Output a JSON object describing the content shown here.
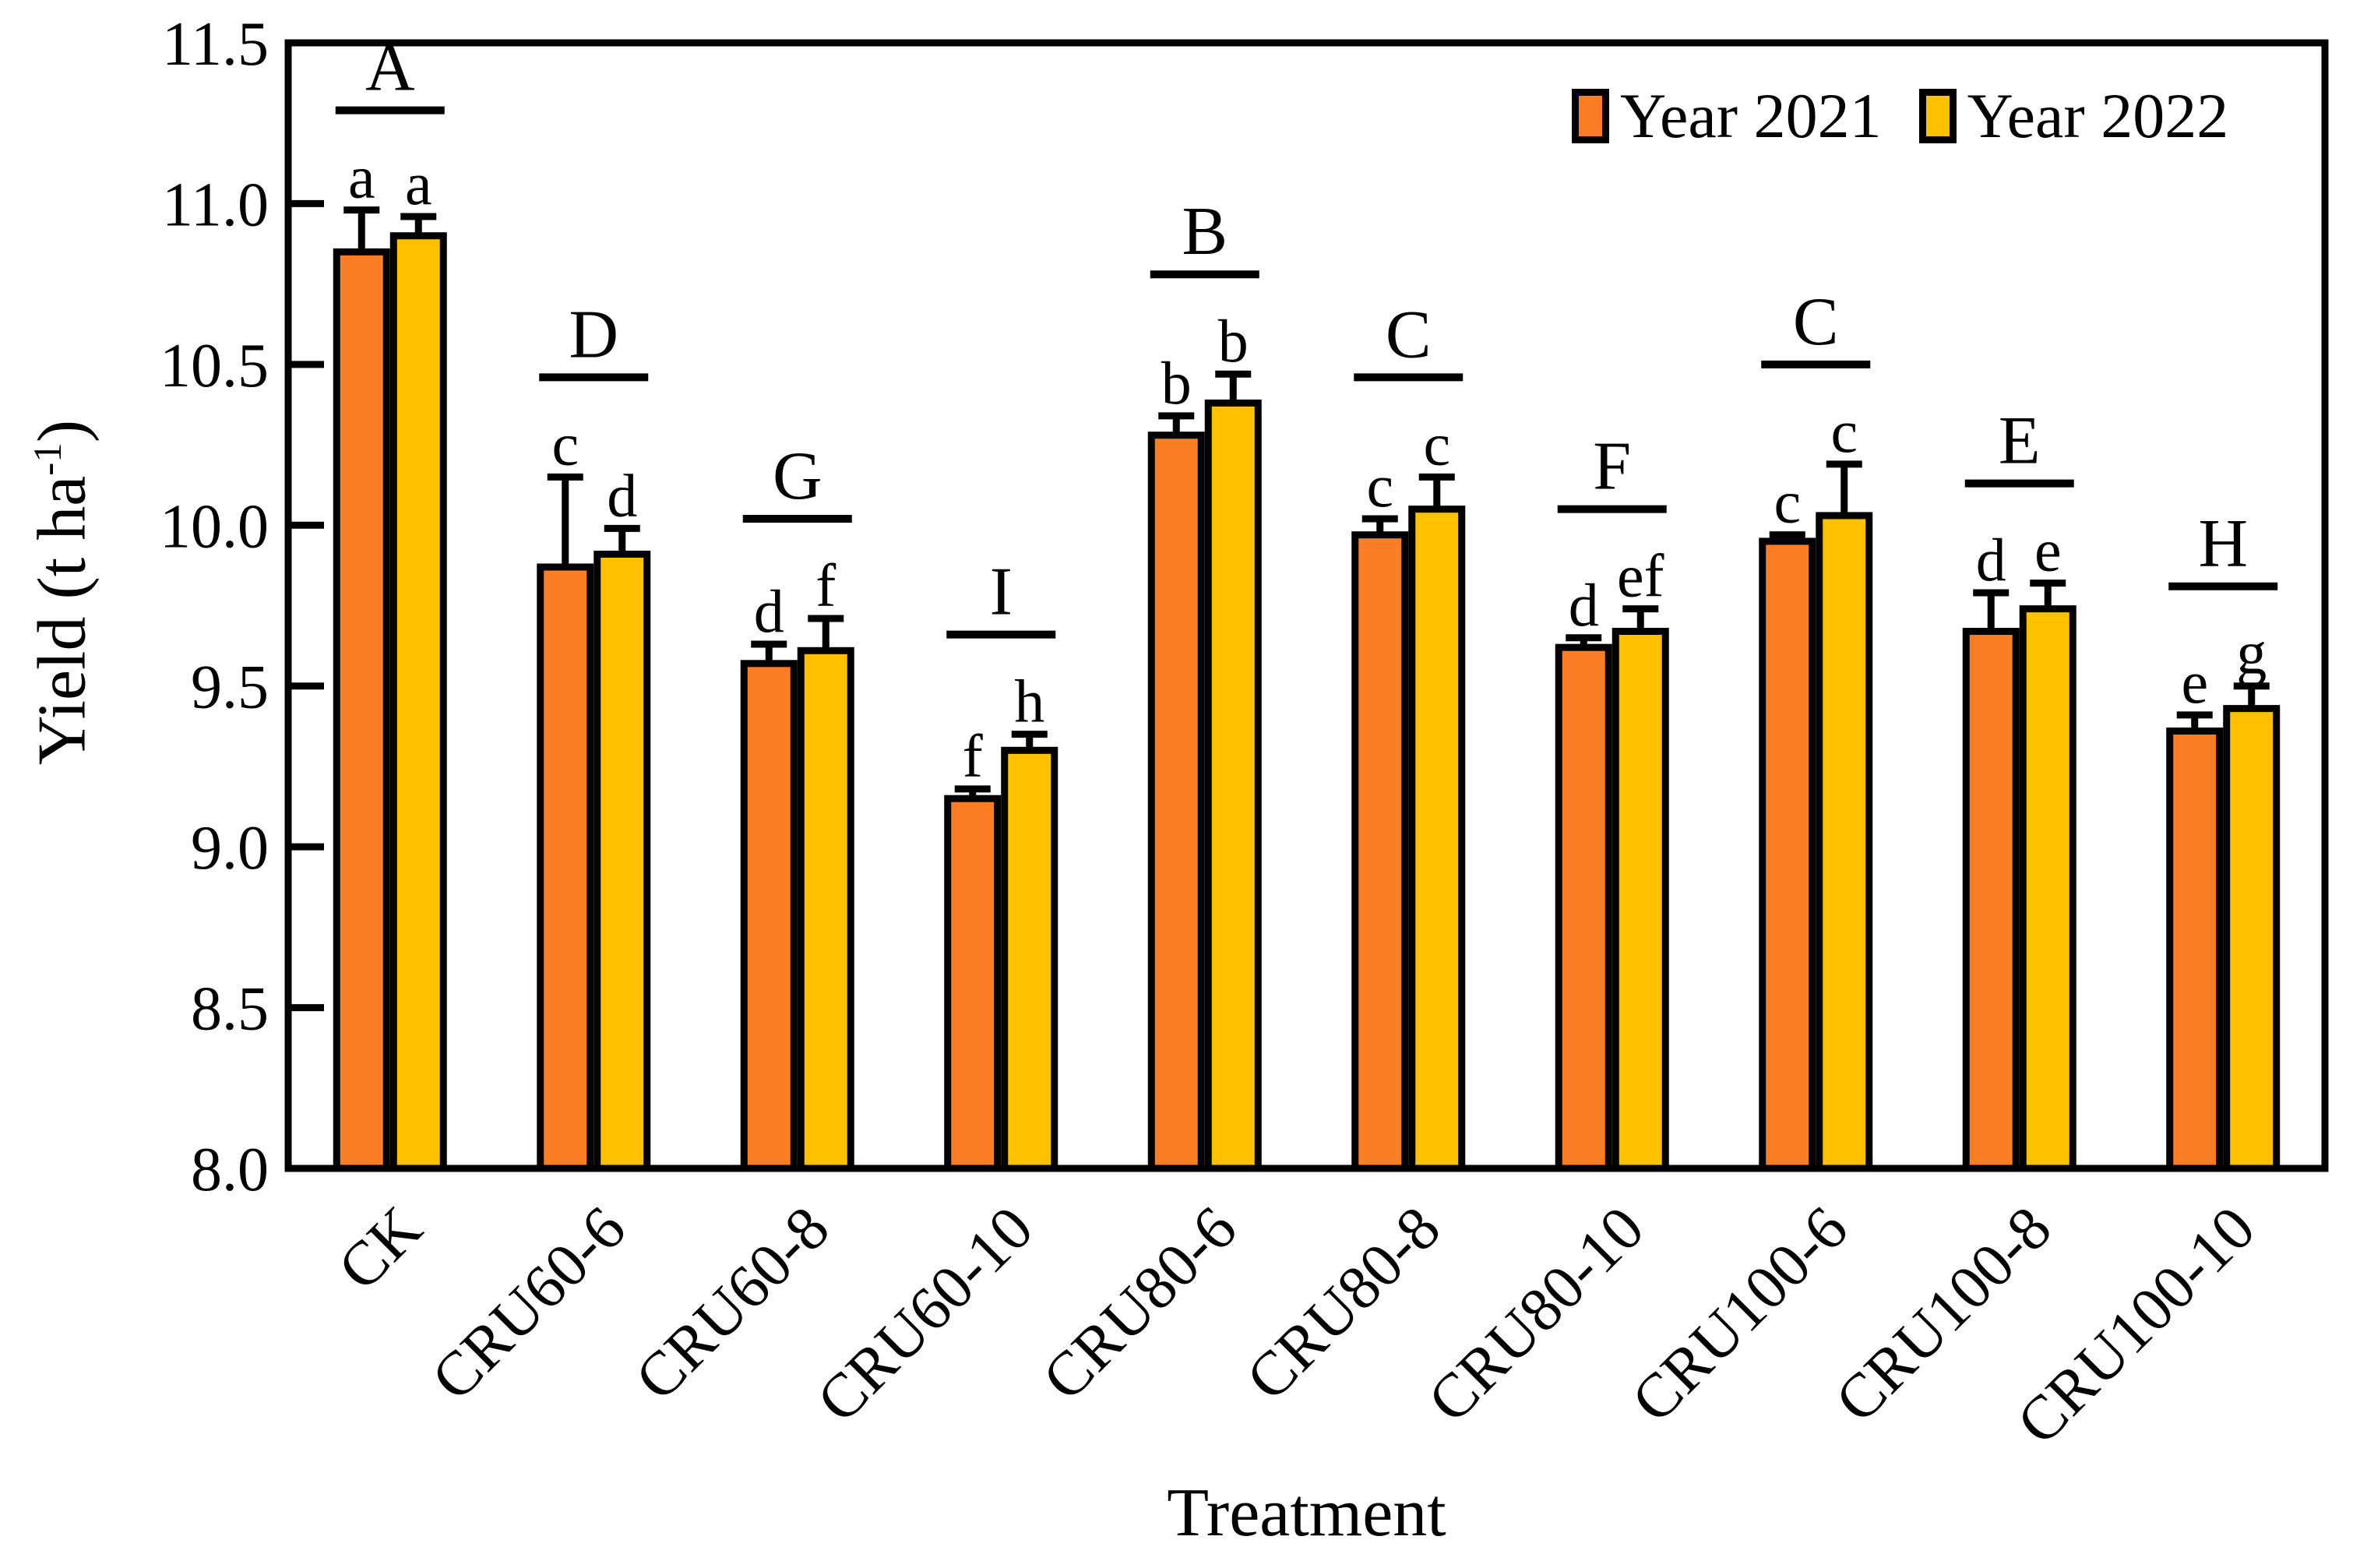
{
  "chart_data": {
    "type": "bar",
    "title": "",
    "xlabel": "Treatment",
    "ylabel_prefix": "Yield (t ha",
    "ylabel_sup": "-1",
    "ylabel_suffix": ")",
    "ylim": [
      8.0,
      11.5
    ],
    "ytick_step": 0.5,
    "yticks": [
      "8.0",
      "8.5",
      "9.0",
      "9.5",
      "10.0",
      "10.5",
      "11.0",
      "11.5"
    ],
    "grid": false,
    "legend_position": "top-right-inside",
    "categories": [
      "CK",
      "CRU60-6",
      "CRU60-8",
      "CRU60-10",
      "CRU80-6",
      "CRU80-8",
      "CRU80-10",
      "CRU100-6",
      "CRU100-8",
      "CRU100-10"
    ],
    "group_letters": [
      "A",
      "D",
      "G",
      "I",
      "B",
      "C",
      "F",
      "C",
      "E",
      "H"
    ],
    "series": [
      {
        "name": "Year 2021",
        "color": "#FB7D26",
        "values": [
          10.85,
          9.87,
          9.57,
          9.15,
          10.28,
          9.97,
          9.62,
          9.95,
          9.67,
          9.36
        ],
        "errors": [
          0.13,
          0.28,
          0.06,
          0.03,
          0.06,
          0.05,
          0.03,
          0.02,
          0.12,
          0.05
        ],
        "letters": [
          "a",
          "c",
          "d",
          "f",
          "b",
          "c",
          "d",
          "c",
          "d",
          "e"
        ]
      },
      {
        "name": "Year 2022",
        "color": "#FFC000",
        "values": [
          10.9,
          9.91,
          9.61,
          9.3,
          10.38,
          10.05,
          9.67,
          10.03,
          9.74,
          9.43
        ],
        "errors": [
          0.06,
          0.08,
          0.1,
          0.05,
          0.09,
          0.1,
          0.07,
          0.16,
          0.08,
          0.07
        ],
        "letters": [
          "a",
          "d",
          "f",
          "h",
          "b",
          "c",
          "ef",
          "c",
          "e",
          "g"
        ]
      }
    ]
  }
}
